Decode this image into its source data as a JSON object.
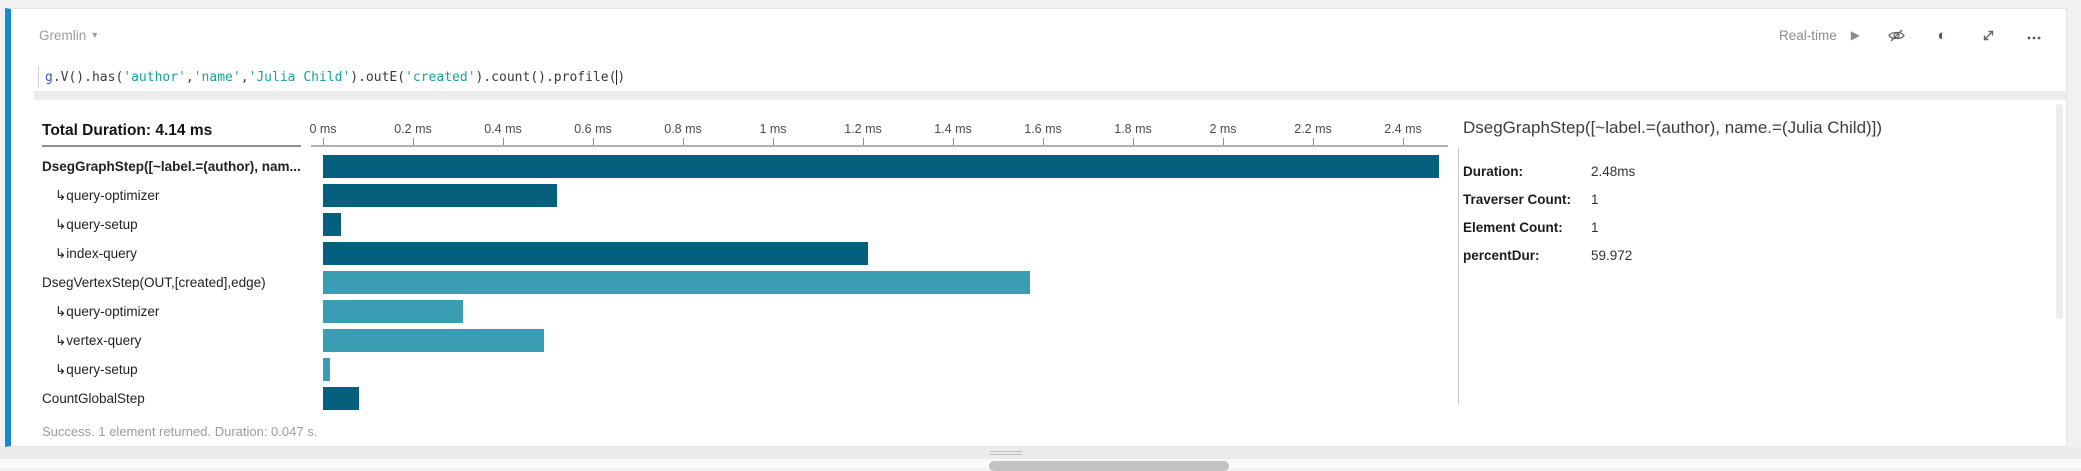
{
  "header": {
    "language_label": "Gremlin",
    "run_mode_label": "Real-time"
  },
  "editor": {
    "segments": [
      {
        "text": "g",
        "type": "keyword"
      },
      {
        "text": ".V().has(",
        "type": "plain"
      },
      {
        "text": "'author'",
        "type": "string"
      },
      {
        "text": ",",
        "type": "plain"
      },
      {
        "text": "'name'",
        "type": "string"
      },
      {
        "text": ",",
        "type": "plain"
      },
      {
        "text": "'Julia Child'",
        "type": "string"
      },
      {
        "text": ").outE(",
        "type": "plain"
      },
      {
        "text": "'created'",
        "type": "string"
      },
      {
        "text": ").count().profile(",
        "type": "plain"
      },
      {
        "text": "",
        "type": "caret"
      },
      {
        "text": ")",
        "type": "plain"
      }
    ]
  },
  "chart_data": {
    "type": "bar",
    "orientation": "horizontal",
    "title": "Total Duration: 4.14 ms",
    "xlabel": "",
    "x_unit": "ms",
    "xlim": [
      0,
      2.5
    ],
    "grid": false,
    "indent_marker": "↳",
    "ticks": [
      {
        "label": "0 ms",
        "value": 0
      },
      {
        "label": "0.2 ms",
        "value": 0.2
      },
      {
        "label": "0.4 ms",
        "value": 0.4
      },
      {
        "label": "0.6 ms",
        "value": 0.6
      },
      {
        "label": "0.8 ms",
        "value": 0.8
      },
      {
        "label": "1 ms",
        "value": 1.0
      },
      {
        "label": "1.2 ms",
        "value": 1.2
      },
      {
        "label": "1.4 ms",
        "value": 1.4
      },
      {
        "label": "1.6 ms",
        "value": 1.6
      },
      {
        "label": "1.8 ms",
        "value": 1.8
      },
      {
        "label": "2 ms",
        "value": 2.0
      },
      {
        "label": "2.2 ms",
        "value": 2.2
      },
      {
        "label": "2.4 ms",
        "value": 2.4
      }
    ],
    "rows": [
      {
        "label": "DsegGraphStep([~label.=(author), nam...",
        "value_ms": 2.48,
        "color": "#05607e",
        "bold": true,
        "indent": false
      },
      {
        "label": "query-optimizer",
        "value_ms": 0.52,
        "color": "#05607e",
        "bold": false,
        "indent": true
      },
      {
        "label": "query-setup",
        "value_ms": 0.04,
        "color": "#05607e",
        "bold": false,
        "indent": true
      },
      {
        "label": "index-query",
        "value_ms": 1.21,
        "color": "#05607e",
        "bold": false,
        "indent": true
      },
      {
        "label": "DsegVertexStep(OUT,[created],edge)",
        "value_ms": 1.57,
        "color": "#3b9db4",
        "bold": false,
        "indent": false
      },
      {
        "label": "query-optimizer",
        "value_ms": 0.31,
        "color": "#3b9db4",
        "bold": false,
        "indent": true
      },
      {
        "label": "vertex-query",
        "value_ms": 0.49,
        "color": "#3b9db4",
        "bold": false,
        "indent": true
      },
      {
        "label": "query-setup",
        "value_ms": 0.015,
        "color": "#3b9db4",
        "bold": false,
        "indent": true
      },
      {
        "label": "CountGlobalStep",
        "value_ms": 0.08,
        "color": "#05607e",
        "bold": false,
        "indent": false
      }
    ]
  },
  "detail_panel": {
    "title": "DsegGraphStep([~label.=(author), name.=(Julia Child)])",
    "fields": [
      {
        "label": "Duration:",
        "value": "2.48ms"
      },
      {
        "label": "Traverser Count:",
        "value": "1"
      },
      {
        "label": "Element Count:",
        "value": "1"
      },
      {
        "label": "percentDur:",
        "value": "59.972"
      }
    ]
  },
  "status_bar": {
    "text": "Success. 1 element returned. Duration: 0.047 s."
  },
  "colors": {
    "accent_stripe": "#1789d3",
    "bar_dark": "#05607e",
    "bar_light": "#3b9db4",
    "string_token": "#18a39a",
    "keyword_token": "#4352c6"
  }
}
